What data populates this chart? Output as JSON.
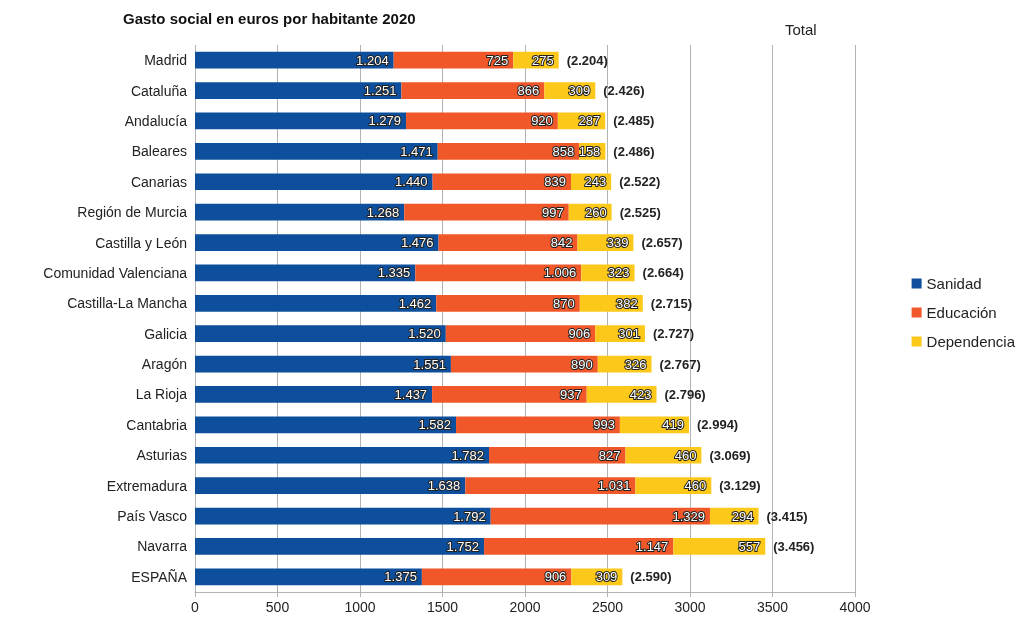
{
  "chart_data": {
    "type": "bar",
    "orientation": "horizontal",
    "stacked": true,
    "title": "Gasto social en euros por habitante 2020",
    "categories": [
      "Madrid",
      "Cataluña",
      "Andalucía",
      "Baleares",
      "Canarias",
      "Región de Murcia",
      "Castilla y León",
      "Comunidad Valenciana",
      "Castilla-La Mancha",
      "Galicia",
      "Aragón",
      "La Rioja",
      "Cantabria",
      "Asturias",
      "Extremadura",
      "País Vasco",
      "Navarra",
      "ESPAÑA"
    ],
    "series": [
      {
        "name": "Sanidad",
        "color": "#0d4f9c",
        "values": [
          1204,
          1251,
          1279,
          1471,
          1440,
          1268,
          1476,
          1335,
          1462,
          1520,
          1551,
          1437,
          1582,
          1782,
          1638,
          1792,
          1752,
          1375
        ],
        "value_labels": [
          "1.204",
          "1.251",
          "1.279",
          "1.471",
          "1.440",
          "1.268",
          "1.476",
          "1.335",
          "1.462",
          "1.520",
          "1.551",
          "1.437",
          "1.582",
          "1.782",
          "1.638",
          "1.792",
          "1.752",
          "1.375"
        ]
      },
      {
        "name": "Educación",
        "color": "#f0582a",
        "values": [
          725,
          866,
          920,
          858,
          839,
          997,
          842,
          1006,
          870,
          906,
          890,
          937,
          993,
          827,
          1031,
          1329,
          1147,
          906
        ],
        "value_labels": [
          "725",
          "866",
          "920",
          "858",
          "839",
          "997",
          "842",
          "1.006",
          "870",
          "906",
          "890",
          "937",
          "993",
          "827",
          "1.031",
          "1.329",
          "1.147",
          "906"
        ]
      },
      {
        "name": "Dependencia",
        "color": "#fcc81a",
        "values": [
          275,
          309,
          287,
          158,
          243,
          260,
          339,
          323,
          382,
          301,
          326,
          423,
          419,
          460,
          460,
          294,
          557,
          309
        ],
        "value_labels": [
          "275",
          "309",
          "287",
          "158",
          "243",
          "260",
          "339",
          "323",
          "382",
          "301",
          "326",
          "423",
          "419",
          "460",
          "460",
          "294",
          "557",
          "309"
        ]
      }
    ],
    "totals": [
      "(2.204)",
      "(2.426)",
      "(2.485)",
      "(2.486)",
      "(2.522)",
      "(2.525)",
      "(2.657)",
      "(2.664)",
      "(2.715)",
      "(2.727)",
      "(2.767)",
      "(2.796)",
      "(2.994)",
      "(3.069)",
      "(3.129)",
      "(3.415)",
      "(3.456)",
      "(2.590)"
    ],
    "annotations": [
      "Total"
    ],
    "xlim": [
      0,
      4000
    ],
    "xticks": [
      0,
      500,
      1000,
      1500,
      2000,
      2500,
      3000,
      3500,
      4000
    ],
    "grid": "x",
    "legend": "right"
  }
}
